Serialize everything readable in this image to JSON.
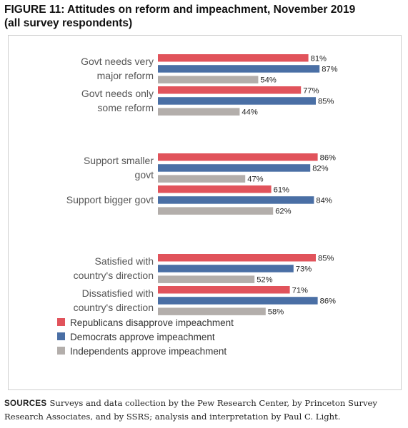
{
  "title": {
    "line1": "FIGURE 11: Attitudes on reform and impeachment, November 2019",
    "line2": "(all survey respondents)"
  },
  "sources": {
    "label": "SOURCES",
    "text": "Surveys and data collection by the Pew Research Center, by Princeton Survey Research Associates, and by SSRS; analysis and interpretation by Paul C. Light."
  },
  "chart_data": {
    "type": "bar",
    "orientation": "horizontal",
    "xlim": [
      0,
      100
    ],
    "grid": false,
    "legend_position": "bottom-left",
    "categories": [
      [
        "Govt needs very",
        "major reform"
      ],
      [
        "Govt needs only",
        "some reform"
      ],
      [
        "Support smaller",
        "govt"
      ],
      [
        "Support bigger govt"
      ],
      [
        "Satisfied with",
        "country's direction"
      ],
      [
        "Dissatisfied with",
        "country's direction"
      ]
    ],
    "series": [
      {
        "name": "Republicans disapprove impeachment",
        "color": "#e1535b",
        "values": [
          81,
          77,
          86,
          61,
          85,
          71
        ],
        "labels": [
          "81%",
          "77%",
          "86%",
          "61%",
          "85%",
          "71%"
        ]
      },
      {
        "name": "Democrats approve impeachment",
        "color": "#4a6fa5",
        "values": [
          87,
          85,
          82,
          84,
          73,
          86
        ],
        "labels": [
          "87%",
          "85%",
          "82%",
          "84%",
          "73%",
          "86%"
        ]
      },
      {
        "name": "Independents approve impeachment",
        "color": "#b3aeab",
        "values": [
          54,
          44,
          47,
          62,
          52,
          58
        ],
        "labels": [
          "54%",
          "44%",
          "47%",
          "62%",
          "52%",
          "58%"
        ]
      }
    ]
  }
}
